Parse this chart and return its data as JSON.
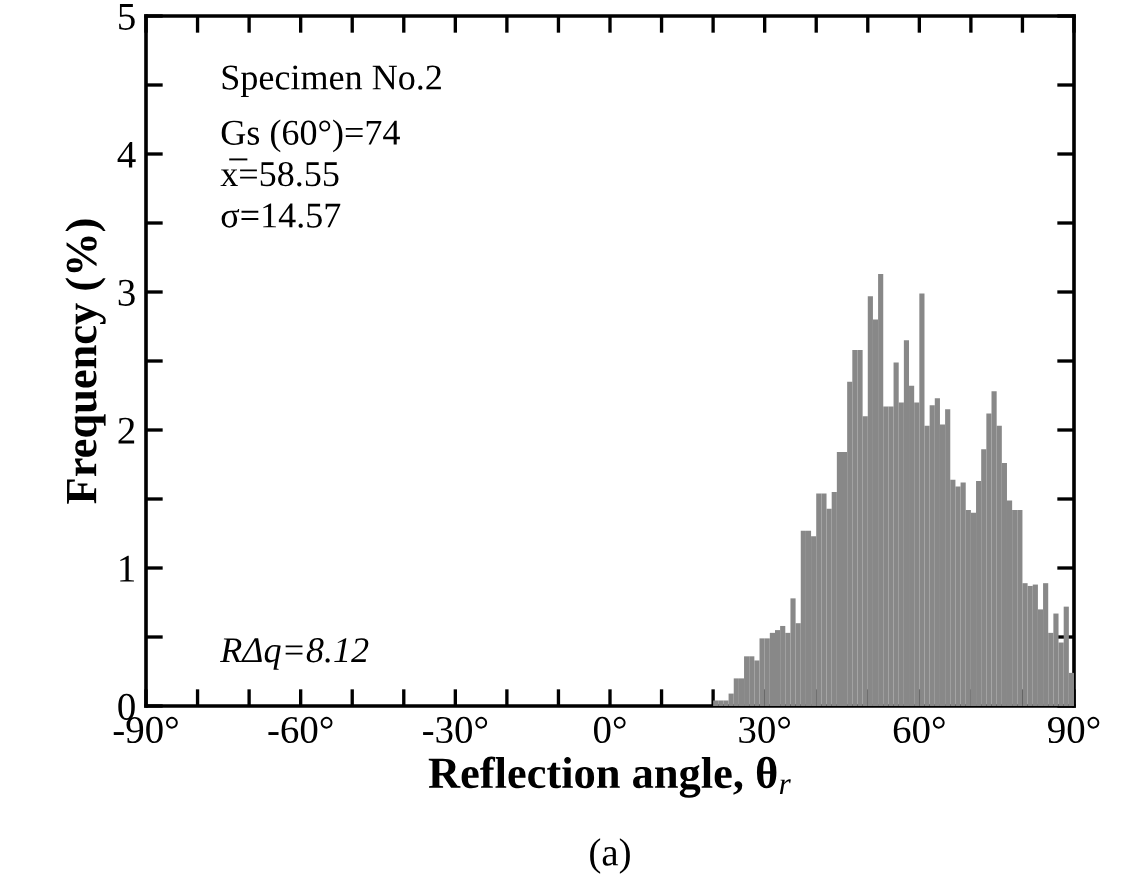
{
  "chart_data": {
    "type": "histogram",
    "xlabel": "Reflection angle, θ$_{r}$",
    "ylabel": "Frequency (%)",
    "bins": [
      20,
      21,
      22,
      23,
      24,
      25,
      26,
      27,
      28,
      29,
      30,
      31,
      32,
      33,
      34,
      35,
      36,
      37,
      38,
      39,
      40,
      41,
      42,
      43,
      44,
      45,
      46,
      47,
      48,
      49,
      50,
      51,
      52,
      53,
      54,
      55,
      56,
      57,
      58,
      59,
      60,
      61,
      62,
      63,
      64,
      65,
      66,
      67,
      68,
      69,
      70,
      71,
      72,
      73,
      74,
      75,
      76,
      77,
      78,
      79,
      80,
      81,
      82,
      83,
      84,
      85,
      86,
      87,
      88,
      89,
      90
    ],
    "values": [
      0.04,
      0.04,
      0.04,
      0.09,
      0.2,
      0.2,
      0.36,
      0.36,
      0.33,
      0.49,
      0.49,
      0.53,
      0.55,
      0.58,
      0.53,
      0.78,
      0.6,
      1.27,
      1.27,
      1.23,
      1.54,
      1.54,
      1.43,
      1.55,
      1.84,
      1.84,
      2.35,
      2.58,
      2.58,
      2.1,
      2.97,
      2.8,
      3.13,
      2.17,
      2.17,
      2.49,
      2.2,
      2.65,
      2.32,
      2.2,
      2.99,
      2.03,
      2.18,
      2.23,
      2.04,
      2.15,
      1.64,
      1.59,
      1.62,
      1.42,
      1.4,
      1.63,
      1.86,
      2.12,
      2.28,
      2.03,
      1.76,
      1.49,
      1.42,
      1.42,
      0.89,
      0.87,
      0.88,
      0.7,
      0.89,
      0.53,
      0.67,
      0.46,
      0.72,
      0.24
    ],
    "color": "#888888",
    "xlim": [
      -90,
      90
    ],
    "xticks": [
      {
        "value": -90,
        "label": "-90°"
      },
      {
        "value": -80,
        "label": null
      },
      {
        "value": -70,
        "label": null
      },
      {
        "value": -60,
        "label": "-60°"
      },
      {
        "value": -50,
        "label": null
      },
      {
        "value": -40,
        "label": null
      },
      {
        "value": -30,
        "label": "-30°"
      },
      {
        "value": -20,
        "label": null
      },
      {
        "value": -10,
        "label": null
      },
      {
        "value": 0,
        "label": "0°"
      },
      {
        "value": 10,
        "label": null
      },
      {
        "value": 20,
        "label": null
      },
      {
        "value": 30,
        "label": "30°"
      },
      {
        "value": 40,
        "label": null
      },
      {
        "value": 50,
        "label": null
      },
      {
        "value": 60,
        "label": "60°"
      },
      {
        "value": 70,
        "label": null
      },
      {
        "value": 80,
        "label": null
      },
      {
        "value": 90,
        "label": "90°"
      }
    ],
    "ylim": [
      0,
      5
    ],
    "yticks": [
      0,
      {
        "value": 0.5,
        "label": null
      },
      1,
      {
        "value": 1.5,
        "label": null
      },
      2,
      {
        "value": 2.5,
        "label": null
      },
      3,
      {
        "value": 3.5,
        "label": null
      },
      4,
      {
        "value": 4.5,
        "label": null
      },
      5
    ],
    "grid": false,
    "legend": false,
    "annotations": [
      "Specimen No.2",
      "Gs (60°)=74",
      "x̅=58.55",
      "σ=14.57",
      "RΔq=8.12",
      "(a)"
    ]
  }
}
